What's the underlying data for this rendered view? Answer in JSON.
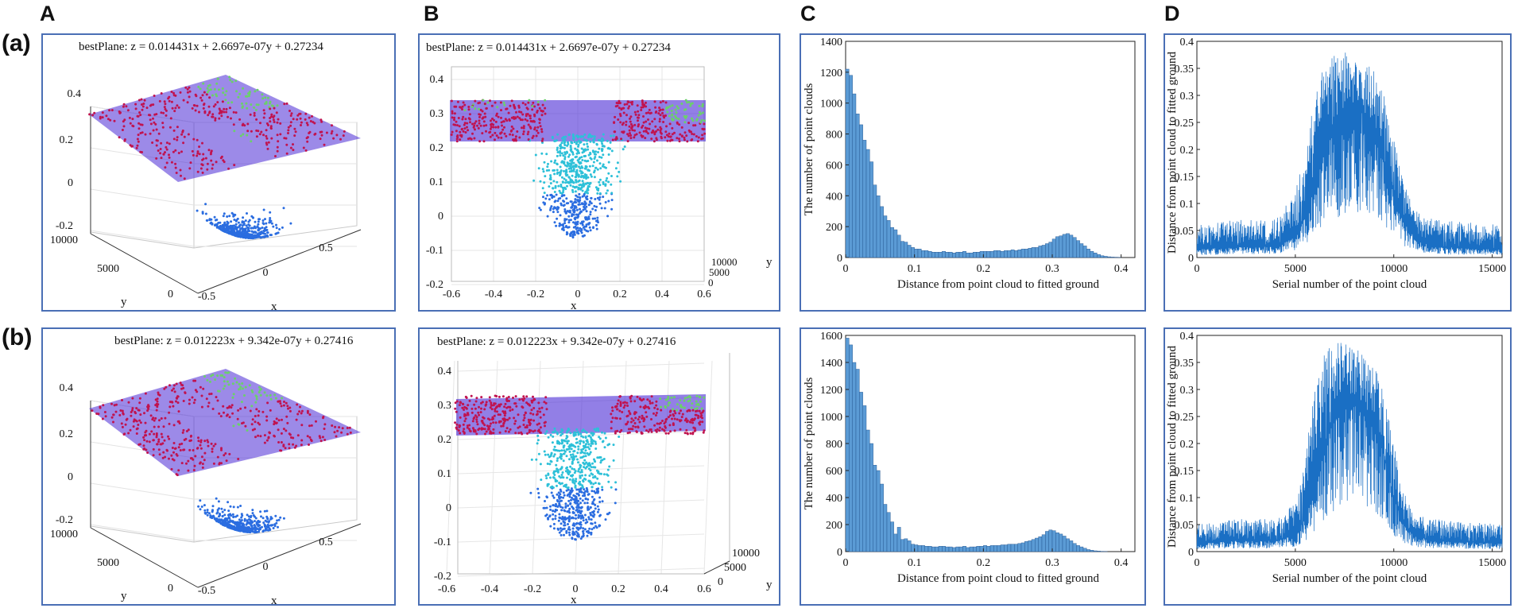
{
  "column_headers": [
    "A",
    "B",
    "C",
    "D"
  ],
  "row_labels": [
    "(a)",
    "(b)"
  ],
  "colors": {
    "border": "#4a6fb5",
    "plane": "#4a2ad6",
    "red_points": "#c0134f",
    "green_points": "#6bd06b",
    "low_points_a": "#2b6de0",
    "low_points_b": "#2dc0d8",
    "bar_fill": "#5b9bd5",
    "bar_edge": "#1f4f8a",
    "trace": "#1a6fc4"
  },
  "rows": [
    {
      "equation": "bestPlane:  z =  0.014431x + 2.6697e-07y + 0.27234",
      "equation_B": "bestPlane:  z =  0.014431x + 2.6697e-07y + 0.27234",
      "panelA": {
        "z_ticks": [
          "0.4",
          "0.2",
          "0",
          "-0.2"
        ],
        "y_ticks": [
          "10000",
          "5000",
          "0"
        ],
        "x_ticks": [
          "-0.5",
          "0",
          "0.5"
        ],
        "xlabel": "x",
        "ylabel": "y"
      },
      "panelB": {
        "z_ticks": [
          "0.4",
          "0.3",
          "0.2",
          "0.1",
          "0",
          "-0.1",
          "-0.2"
        ],
        "x_ticks": [
          "-0.6",
          "-0.4",
          "-0.2",
          "0",
          "0.2",
          "0.4",
          "0.6"
        ],
        "y_ticks": [
          "10000",
          "5000",
          "0"
        ],
        "xlabel": "x",
        "ylabel": "y"
      }
    },
    {
      "equation": "bestPlane:  z =  0.012223x + 9.342e-07y + 0.27416",
      "equation_B": "bestPlane:  z =  0.012223x + 9.342e-07y + 0.27416",
      "panelA": {
        "z_ticks": [
          "0.4",
          "0.2",
          "0",
          "-0.2"
        ],
        "y_ticks": [
          "10000",
          "5000",
          "0"
        ],
        "x_ticks": [
          "-0.5",
          "0",
          "0.5"
        ],
        "xlabel": "x",
        "ylabel": "y"
      },
      "panelB": {
        "z_ticks": [
          "0.4",
          "0.3",
          "0.2",
          "0.1",
          "0",
          "-0.1",
          "-0.2"
        ],
        "x_ticks": [
          "-0.6",
          "-0.4",
          "-0.2",
          "0",
          "0.2",
          "0.4",
          "0.6"
        ],
        "y_ticks": [
          "10000",
          "5000",
          "0"
        ],
        "xlabel": "x",
        "ylabel": "y"
      }
    }
  ],
  "chart_data": [
    {
      "id": "Ca",
      "type": "bar",
      "xlabel": "Distance from point cloud to fitted ground",
      "ylabel": "The number of point clouds",
      "xlim": [
        0,
        0.42
      ],
      "ylim": [
        0,
        1400
      ],
      "xticks": [
        0,
        0.1,
        0.2,
        0.3,
        0.4
      ],
      "yticks": [
        0,
        200,
        400,
        600,
        800,
        1000,
        1200,
        1400
      ],
      "bin_width": 0.005,
      "values": [
        1220,
        1180,
        1060,
        930,
        860,
        760,
        700,
        620,
        470,
        400,
        330,
        270,
        240,
        195,
        180,
        145,
        105,
        100,
        80,
        65,
        55,
        55,
        45,
        45,
        40,
        35,
        35,
        35,
        40,
        35,
        35,
        30,
        35,
        35,
        40,
        30,
        30,
        35,
        35,
        40,
        40,
        40,
        40,
        45,
        45,
        40,
        45,
        45,
        50,
        45,
        50,
        55,
        55,
        60,
        65,
        65,
        75,
        80,
        90,
        100,
        120,
        135,
        140,
        150,
        155,
        145,
        130,
        110,
        90,
        75,
        55,
        40,
        30,
        20,
        12,
        8,
        5,
        3,
        2,
        1,
        0,
        0,
        0,
        0
      ]
    },
    {
      "id": "Cb",
      "type": "bar",
      "xlabel": "Distance from point cloud to fitted ground",
      "ylabel": "The number of point clouds",
      "xlim": [
        0,
        0.42
      ],
      "ylim": [
        0,
        1600
      ],
      "xticks": [
        0,
        0.1,
        0.2,
        0.3,
        0.4
      ],
      "yticks": [
        0,
        200,
        400,
        600,
        800,
        1000,
        1200,
        1400,
        1600
      ],
      "bin_width": 0.005,
      "values": [
        1580,
        1530,
        1400,
        1350,
        1180,
        1080,
        900,
        800,
        640,
        600,
        500,
        350,
        290,
        220,
        130,
        180,
        90,
        95,
        80,
        55,
        50,
        45,
        45,
        40,
        40,
        35,
        35,
        40,
        40,
        35,
        35,
        30,
        35,
        35,
        40,
        30,
        35,
        35,
        40,
        40,
        45,
        40,
        45,
        45,
        45,
        50,
        50,
        55,
        55,
        55,
        60,
        65,
        75,
        80,
        90,
        100,
        110,
        125,
        150,
        160,
        155,
        140,
        130,
        115,
        95,
        80,
        60,
        45,
        35,
        25,
        15,
        10,
        6,
        4,
        2,
        1,
        0,
        0,
        0,
        0,
        0,
        0,
        0,
        0
      ]
    },
    {
      "id": "Da",
      "type": "line",
      "xlabel": "Serial number of the point cloud",
      "ylabel": "Distance from point cloud to fitted ground",
      "xlim": [
        0,
        15500
      ],
      "ylim": [
        0,
        0.4
      ],
      "xticks": [
        0,
        5000,
        10000,
        15000
      ],
      "yticks": [
        0,
        0.05,
        0.1,
        0.15,
        0.2,
        0.25,
        0.3,
        0.35,
        0.4
      ],
      "envelope_x": [
        0,
        2000,
        4000,
        5000,
        5500,
        6000,
        6500,
        7000,
        7500,
        8000,
        8500,
        9000,
        9500,
        10000,
        10500,
        11000,
        12000,
        15500
      ],
      "envelope_base": [
        0.015,
        0.02,
        0.02,
        0.04,
        0.08,
        0.14,
        0.2,
        0.24,
        0.26,
        0.28,
        0.27,
        0.23,
        0.18,
        0.12,
        0.07,
        0.04,
        0.02,
        0.015
      ],
      "envelope_top": [
        0.06,
        0.07,
        0.07,
        0.12,
        0.2,
        0.3,
        0.36,
        0.38,
        0.38,
        0.37,
        0.36,
        0.35,
        0.3,
        0.22,
        0.14,
        0.09,
        0.07,
        0.06
      ]
    },
    {
      "id": "Db",
      "type": "line",
      "xlabel": "Serial number of the point cloud",
      "ylabel": "Distance from point cloud to fitted ground",
      "xlim": [
        0,
        15500
      ],
      "ylim": [
        0,
        0.4
      ],
      "xticks": [
        0,
        5000,
        10000,
        15000
      ],
      "yticks": [
        0,
        0.05,
        0.1,
        0.15,
        0.2,
        0.25,
        0.3,
        0.35,
        0.4
      ],
      "envelope_x": [
        0,
        2000,
        4000,
        5000,
        5500,
        6000,
        6500,
        7000,
        7500,
        8000,
        8500,
        9000,
        9500,
        10000,
        10500,
        11000,
        12000,
        15500
      ],
      "envelope_base": [
        0.015,
        0.02,
        0.02,
        0.03,
        0.06,
        0.12,
        0.2,
        0.25,
        0.27,
        0.28,
        0.27,
        0.24,
        0.18,
        0.1,
        0.05,
        0.03,
        0.02,
        0.015
      ],
      "envelope_top": [
        0.05,
        0.06,
        0.06,
        0.09,
        0.18,
        0.3,
        0.37,
        0.39,
        0.39,
        0.38,
        0.37,
        0.35,
        0.3,
        0.2,
        0.11,
        0.07,
        0.06,
        0.05
      ]
    }
  ]
}
